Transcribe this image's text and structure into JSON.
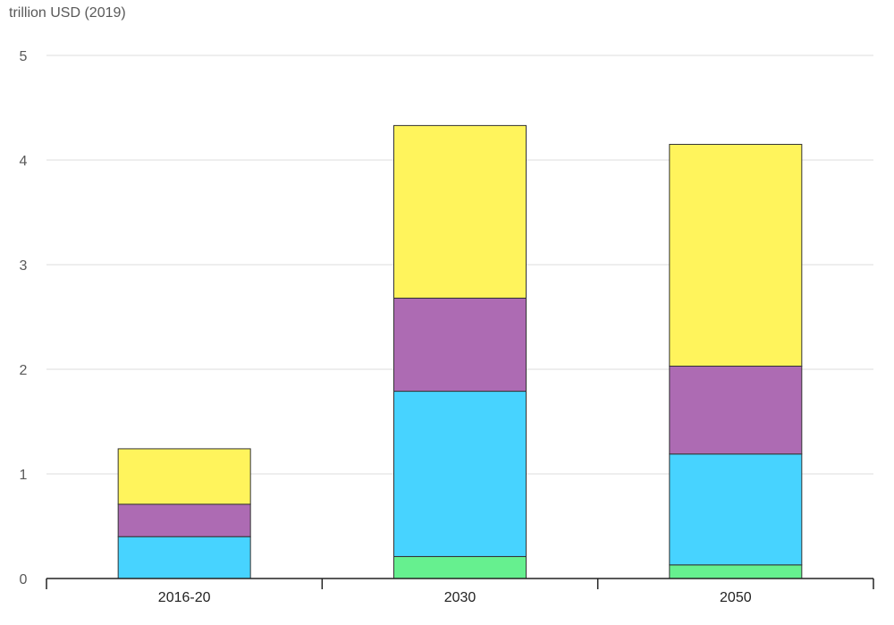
{
  "chart_data": {
    "type": "bar",
    "stacked": true,
    "ylabel": "trillion USD (2019)",
    "categories": [
      "2016-20",
      "2030",
      "2050"
    ],
    "series": [
      {
        "color": "#66F08F",
        "values": [
          0.0,
          0.21,
          0.13
        ]
      },
      {
        "color": "#47D3FF",
        "values": [
          0.4,
          1.58,
          1.06
        ]
      },
      {
        "color": "#AD6BB3",
        "values": [
          0.31,
          0.89,
          0.84
        ]
      },
      {
        "color": "#FFF45C",
        "values": [
          0.53,
          1.65,
          2.12
        ]
      }
    ],
    "ylim": [
      0,
      5
    ],
    "yticks": [
      "0",
      "1",
      "2",
      "3",
      "4",
      "5"
    ],
    "grid": true,
    "grid_color": "#DDDDDD",
    "axis_color": "#222222",
    "bar_outline_color": "#333333"
  }
}
